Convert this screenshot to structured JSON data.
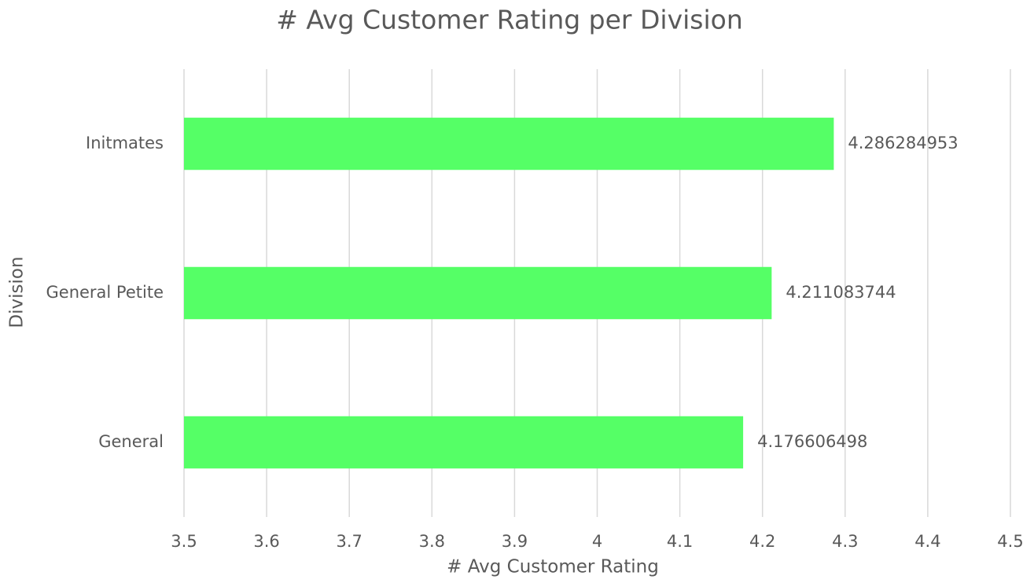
{
  "chart_data": {
    "type": "barh",
    "title": "# Avg Customer Rating per Division",
    "x_label": "# Avg Customer Rating",
    "y_label": "Division",
    "categories": [
      "General",
      "General Petite",
      "Initmates"
    ],
    "values": [
      4.176606498,
      4.211083744,
      4.286284953
    ],
    "color": "#55ff66",
    "xlim": [
      3.5,
      4.5
    ],
    "xticks": [
      3.5,
      3.6,
      3.7,
      3.8,
      3.9,
      4,
      4.1,
      4.2,
      4.3,
      4.4,
      4.5
    ],
    "grid": true
  }
}
